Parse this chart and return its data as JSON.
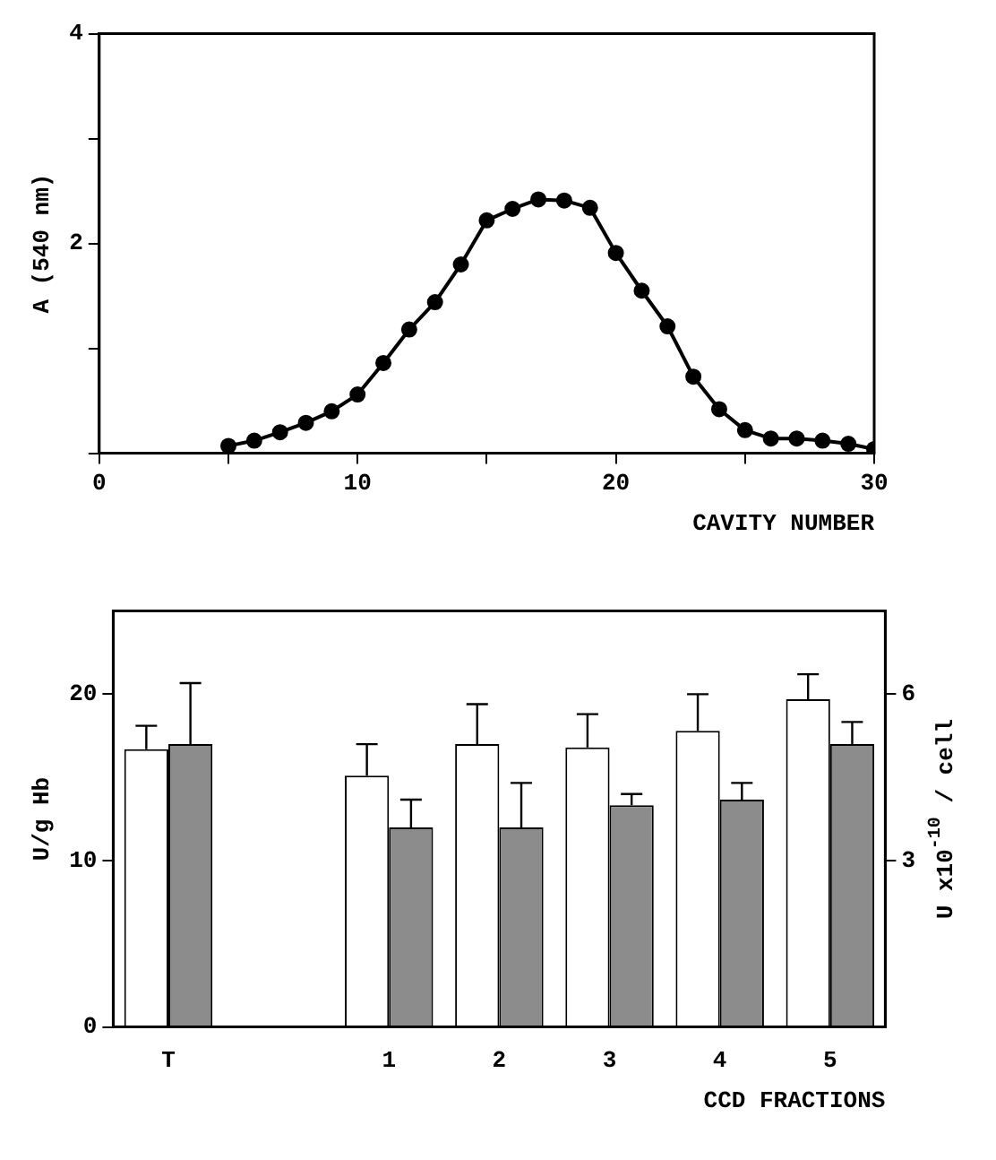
{
  "chart_data": [
    {
      "type": "line",
      "xlabel": "CAVITY NUMBER",
      "ylabel": "A (540 nm)",
      "marker": "circle",
      "line_style": "solid",
      "xlim": [
        0,
        30
      ],
      "xticks": [
        0,
        {
          "value": 5,
          "label": null
        },
        10,
        {
          "value": 15,
          "label": null
        },
        20,
        {
          "value": 25,
          "label": null
        },
        30
      ],
      "ylim": [
        0,
        4
      ],
      "yticks": [
        {
          "value": 0,
          "label": null
        },
        {
          "value": 1,
          "label": null
        },
        2,
        {
          "value": 3,
          "label": null
        },
        4
      ],
      "x": [
        5,
        6,
        7,
        8,
        9,
        10,
        11,
        12,
        13,
        14,
        15,
        16,
        17,
        18,
        19,
        20,
        21,
        22,
        23,
        24,
        25,
        26,
        27,
        28,
        29,
        30
      ],
      "series": [
        {
          "color": "#000000",
          "values": [
            0.07,
            0.12,
            0.2,
            0.29,
            0.4,
            0.56,
            0.86,
            1.18,
            1.44,
            1.8,
            2.22,
            2.33,
            2.42,
            2.41,
            2.34,
            1.91,
            1.55,
            1.21,
            0.73,
            0.42,
            0.22,
            0.14,
            0.14,
            0.12,
            0.09,
            0.04
          ]
        }
      ]
    },
    {
      "type": "bar",
      "xlabel": "CCD FRACTIONS",
      "ylabel": "U/g Hb",
      "y2label": "U x10$^{-10}$ / cell",
      "categories": [
        "T",
        null,
        "1",
        "2",
        "3",
        "4",
        "5"
      ],
      "ylim": [
        0,
        25
      ],
      "yticks": [
        0,
        10,
        20
      ],
      "y2lim": [
        0,
        7.5
      ],
      "y2ticks": [
        3,
        6
      ],
      "series": [
        {
          "color": "#ffffff",
          "values": [
            16.7,
            null,
            15.1,
            17.0,
            16.8,
            17.8,
            19.7
          ],
          "errors": [
            [
              16.7,
              18.1
            ],
            null,
            [
              15.1,
              17.0
            ],
            [
              17.0,
              19.4
            ],
            [
              16.8,
              18.8
            ],
            [
              17.8,
              20.0
            ],
            [
              19.7,
              21.2
            ]
          ]
        },
        {
          "color": "#8c8c8c",
          "axis": "y2",
          "values": [
            5.1,
            null,
            3.6,
            3.6,
            4.0,
            4.1,
            5.1
          ],
          "errors": [
            [
              5.1,
              6.2
            ],
            null,
            [
              3.6,
              4.1
            ],
            [
              3.6,
              4.4
            ],
            [
              4.0,
              4.2
            ],
            [
              4.1,
              4.4
            ],
            [
              5.1,
              5.5
            ]
          ]
        }
      ]
    }
  ]
}
